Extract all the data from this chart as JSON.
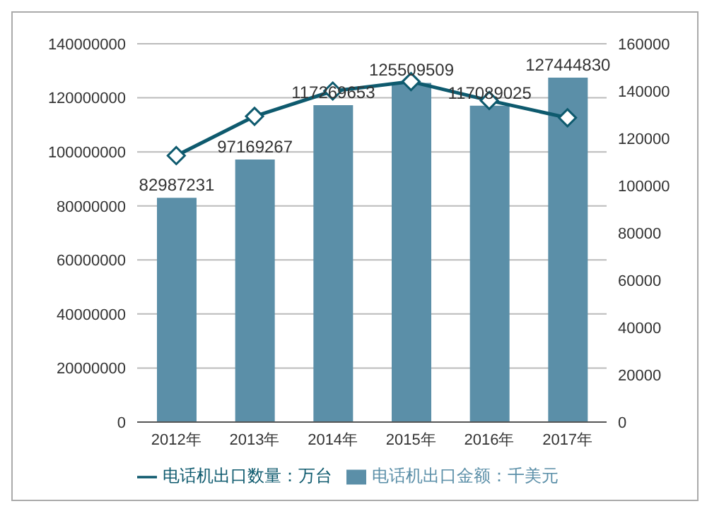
{
  "chart_data": {
    "type": "bar",
    "categories": [
      "2012年",
      "2013年",
      "2014年",
      "2015年",
      "2016年",
      "2017年"
    ],
    "series": [
      {
        "name": "电话机出口金额：千美元",
        "color": "#5b8fa8",
        "values": [
          82987231,
          97169267,
          117269653,
          125509509,
          117089025,
          127444830
        ],
        "value_labels": [
          "82987231",
          "97169267",
          "117269653",
          "125509509",
          "117089025",
          "127444830"
        ]
      },
      {
        "name": "电话机出口数量：万台",
        "type": "line",
        "axis": "y2",
        "color": "#0e5a6e",
        "marker": "diamond",
        "values": [
          112700,
          129300,
          140000,
          144000,
          136000,
          128700
        ]
      }
    ],
    "ylim": [
      0,
      140000000
    ],
    "yticks": [
      0,
      20000000,
      40000000,
      60000000,
      80000000,
      100000000,
      120000000,
      140000000
    ],
    "y2lim": [
      0,
      160000
    ],
    "y2ticks": [
      0,
      20000,
      40000,
      60000,
      80000,
      100000,
      120000,
      140000,
      160000
    ],
    "grid": "y",
    "legend": "bottom"
  }
}
